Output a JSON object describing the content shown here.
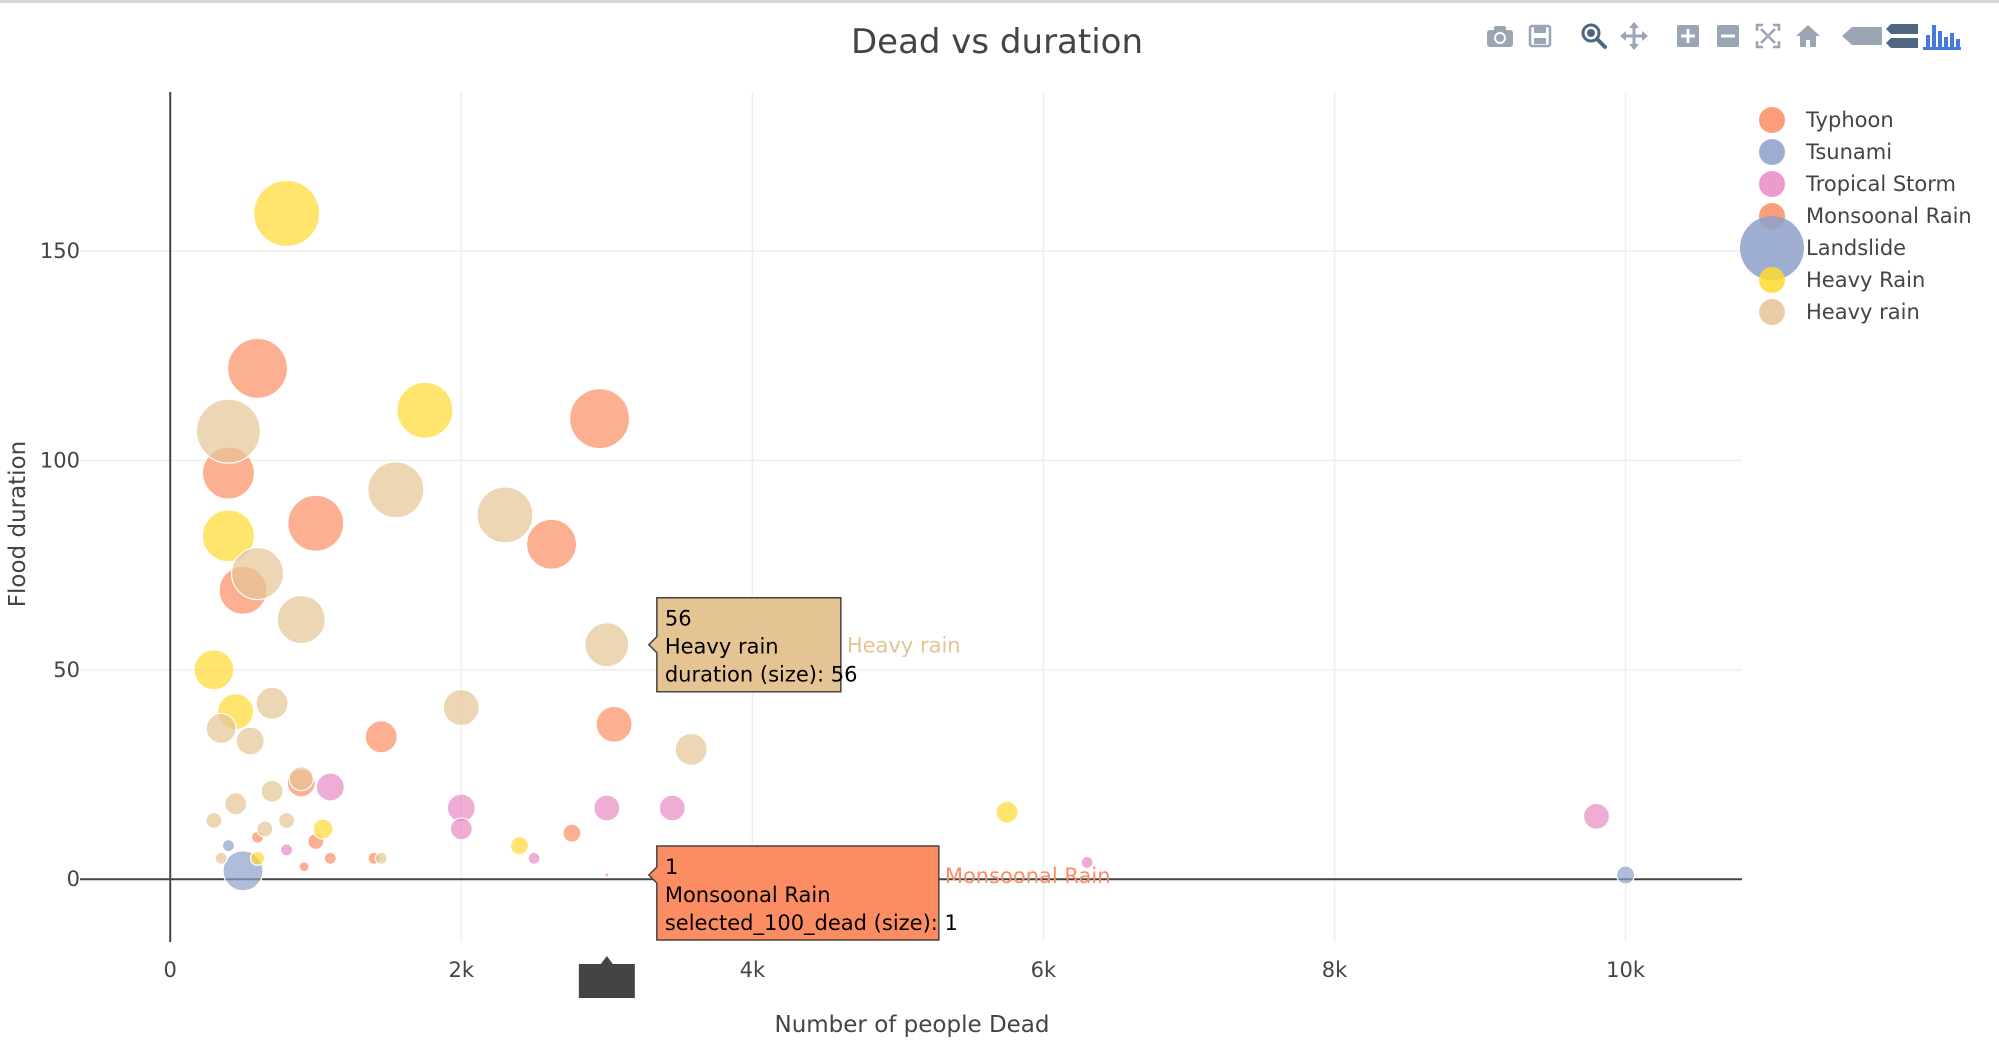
{
  "chart_data": {
    "type": "scatter",
    "title": "Dead vs duration",
    "xlabel": "Number of people Dead",
    "ylabel": "Flood duration",
    "xlim": [
      -620,
      10800
    ],
    "ylim": [
      -15,
      188
    ],
    "x_ticks": [
      0,
      2000,
      4000,
      6000,
      8000,
      10000
    ],
    "x_tick_labels": [
      "0",
      "2k",
      "4k",
      "6k",
      "8k",
      "10k"
    ],
    "y_ticks": [
      0,
      50,
      100,
      150
    ],
    "y_tick_labels": [
      "0",
      "50",
      "100",
      "150"
    ],
    "grid": true,
    "legend_position": "top-right",
    "series": [
      {
        "name": "Typhoon",
        "color": "#fc8d62",
        "points": [
          [
            600,
            122,
            30
          ],
          [
            400,
            97,
            26
          ],
          [
            1000,
            85,
            28
          ],
          [
            2950,
            110,
            30
          ],
          [
            2620,
            80,
            25
          ],
          [
            500,
            69,
            24
          ],
          [
            1450,
            34,
            16
          ],
          [
            3050,
            37,
            18
          ],
          [
            900,
            23,
            14
          ],
          [
            2760,
            11,
            9
          ]
        ]
      },
      {
        "name": "Tsunami",
        "color": "#8da0cb",
        "points": [
          [
            10000,
            1,
            9
          ],
          [
            400,
            8,
            6
          ]
        ]
      },
      {
        "name": "Tropical Storm",
        "color": "#e78ac3",
        "points": [
          [
            2000,
            17,
            14
          ],
          [
            2000,
            12,
            11
          ],
          [
            3000,
            17,
            13
          ],
          [
            3450,
            17,
            13
          ],
          [
            9800,
            15,
            13
          ],
          [
            6300,
            4,
            6
          ],
          [
            2500,
            5,
            6
          ],
          [
            1100,
            22,
            14
          ],
          [
            800,
            7,
            6
          ]
        ]
      },
      {
        "name": "Monsoonal Rain",
        "color": "#fc8d62",
        "points": [
          [
            3000,
            1,
            2
          ],
          [
            1000,
            9,
            8
          ],
          [
            1100,
            5,
            6
          ],
          [
            920,
            3,
            5
          ],
          [
            600,
            10,
            6
          ],
          [
            1400,
            5,
            6
          ]
        ]
      },
      {
        "name": "Landslide",
        "color": "#8da0cb",
        "points": [
          [
            500,
            2,
            20
          ]
        ]
      },
      {
        "name": "Heavy Rain",
        "color": "#ffd92f",
        "points": [
          [
            800,
            159,
            33
          ],
          [
            1750,
            112,
            28
          ],
          [
            400,
            82,
            26
          ],
          [
            300,
            50,
            20
          ],
          [
            450,
            40,
            18
          ],
          [
            5750,
            16,
            11
          ],
          [
            2400,
            8,
            9
          ],
          [
            1050,
            12,
            10
          ],
          [
            600,
            5,
            7
          ]
        ]
      },
      {
        "name": "Heavy rain",
        "color": "#e5c494",
        "points": [
          [
            400,
            107,
            32
          ],
          [
            1550,
            93,
            28
          ],
          [
            2300,
            87,
            28
          ],
          [
            600,
            73,
            26
          ],
          [
            900,
            62,
            24
          ],
          [
            3000,
            56,
            22
          ],
          [
            2000,
            41,
            18
          ],
          [
            3580,
            31,
            16
          ],
          [
            700,
            42,
            16
          ],
          [
            350,
            36,
            15
          ],
          [
            550,
            33,
            14
          ],
          [
            900,
            24,
            12
          ],
          [
            700,
            21,
            11
          ],
          [
            450,
            18,
            11
          ],
          [
            1450,
            5,
            6
          ],
          [
            650,
            12,
            8
          ],
          [
            350,
            5,
            6
          ],
          [
            300,
            14,
            8
          ],
          [
            800,
            14,
            8
          ]
        ]
      }
    ],
    "hover_labels": [
      {
        "x": 3000,
        "y": 56,
        "series": "Heavy rain",
        "lines": [
          "56",
          "Heavy rain",
          "duration (size): 56"
        ],
        "side_label": "Heavy rain",
        "bg": "#e5c494",
        "text_color": "#000000",
        "side_color": "#e5c494"
      },
      {
        "x": 3000,
        "y": 1,
        "series": "Monsoonal Rain",
        "lines": [
          "1",
          "Monsoonal Rain",
          "selected_100_dead (size): 1"
        ],
        "side_label": "Monsoonal Rain",
        "bg": "#fc8d62",
        "text_color": "#000000",
        "side_color": "#fc8d62"
      }
    ],
    "x_spike_label": "3000"
  },
  "modebar": {
    "icons": [
      "camera-icon",
      "save-icon",
      "zoom-icon",
      "pan-icon",
      "zoom-in-icon",
      "zoom-out-icon",
      "autoscale-icon",
      "reset-axes-icon",
      "hover-closest-icon",
      "hover-compare-icon",
      "plotly-logo-icon"
    ]
  }
}
